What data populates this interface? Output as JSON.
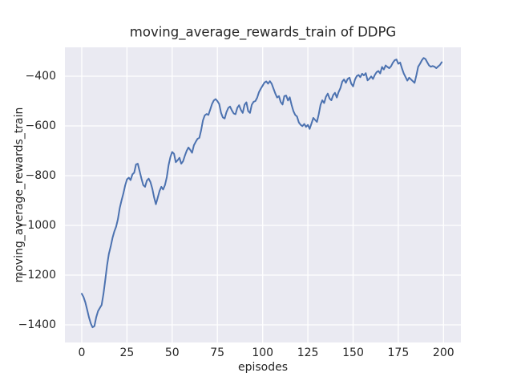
{
  "chart_data": {
    "type": "line",
    "title": "moving_average_rewards_train of DDPG",
    "xlabel": "episodes",
    "ylabel": "moving_average_rewards_train",
    "x_ticks": [
      0,
      25,
      50,
      75,
      100,
      125,
      150,
      175,
      200
    ],
    "y_ticks": [
      -400,
      -600,
      -800,
      -1000,
      -1200,
      -1400
    ],
    "xlim": [
      -9.3,
      209.6
    ],
    "ylim": [
      -1471,
      -284
    ],
    "grid": true,
    "legend": "none",
    "colors": {
      "line": "#4c72b0",
      "plot_background": "#eaeaf2",
      "grid": "#ffffff",
      "text": "#262626",
      "figure_background": "#ffffff"
    },
    "series": [
      {
        "name": "moving_average_rewards_train",
        "x_start": 0,
        "x_step": 1,
        "y": [
          -1275,
          -1288,
          -1310,
          -1340,
          -1370,
          -1395,
          -1410,
          -1405,
          -1370,
          -1345,
          -1332,
          -1320,
          -1275,
          -1220,
          -1160,
          -1115,
          -1085,
          -1050,
          -1025,
          -1005,
          -975,
          -930,
          -900,
          -872,
          -840,
          -815,
          -808,
          -818,
          -795,
          -788,
          -755,
          -752,
          -782,
          -812,
          -838,
          -845,
          -820,
          -812,
          -826,
          -852,
          -888,
          -915,
          -888,
          -862,
          -845,
          -856,
          -838,
          -806,
          -758,
          -725,
          -705,
          -712,
          -746,
          -738,
          -728,
          -752,
          -742,
          -720,
          -700,
          -687,
          -697,
          -708,
          -678,
          -664,
          -652,
          -648,
          -618,
          -578,
          -558,
          -552,
          -556,
          -535,
          -512,
          -498,
          -492,
          -500,
          -512,
          -548,
          -566,
          -570,
          -545,
          -528,
          -522,
          -538,
          -550,
          -553,
          -527,
          -517,
          -536,
          -548,
          -515,
          -505,
          -540,
          -548,
          -515,
          -503,
          -500,
          -486,
          -464,
          -450,
          -438,
          -426,
          -421,
          -430,
          -420,
          -430,
          -450,
          -470,
          -486,
          -480,
          -504,
          -514,
          -480,
          -478,
          -498,
          -485,
          -516,
          -540,
          -556,
          -562,
          -586,
          -596,
          -601,
          -592,
          -604,
          -596,
          -612,
          -590,
          -568,
          -576,
          -584,
          -554,
          -515,
          -497,
          -508,
          -483,
          -470,
          -490,
          -497,
          -476,
          -467,
          -486,
          -464,
          -448,
          -422,
          -413,
          -427,
          -411,
          -406,
          -430,
          -441,
          -414,
          -400,
          -395,
          -404,
          -390,
          -397,
          -388,
          -417,
          -410,
          -401,
          -411,
          -395,
          -384,
          -379,
          -389,
          -363,
          -373,
          -357,
          -363,
          -368,
          -360,
          -346,
          -336,
          -333,
          -350,
          -345,
          -368,
          -389,
          -403,
          -418,
          -406,
          -413,
          -420,
          -427,
          -396,
          -362,
          -350,
          -336,
          -327,
          -331,
          -344,
          -357,
          -362,
          -359,
          -362,
          -368,
          -361,
          -355,
          -344
        ]
      }
    ]
  }
}
